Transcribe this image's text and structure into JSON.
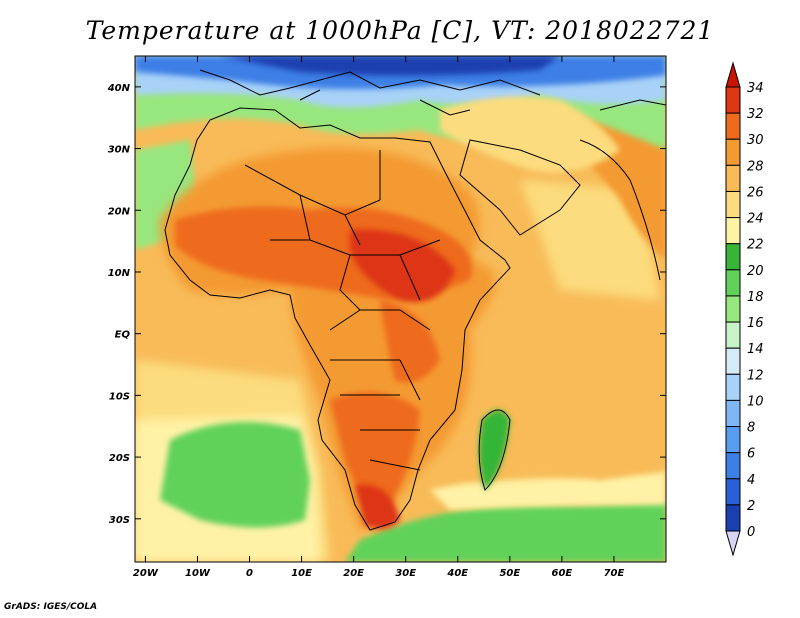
{
  "title": "Temperature at 1000hPa [C], VT: 2018022721",
  "footer": "GrADS: IGES/COLA",
  "map": {
    "region": "Africa and surrounding seas",
    "lon_range": [
      -22,
      80
    ],
    "lat_range": [
      -37,
      45
    ],
    "lon_ticks": [
      {
        "value": -20,
        "label": "20W"
      },
      {
        "value": -10,
        "label": "10W"
      },
      {
        "value": 0,
        "label": "0"
      },
      {
        "value": 10,
        "label": "10E"
      },
      {
        "value": 20,
        "label": "20E"
      },
      {
        "value": 30,
        "label": "30E"
      },
      {
        "value": 40,
        "label": "40E"
      },
      {
        "value": 50,
        "label": "50E"
      },
      {
        "value": 60,
        "label": "60E"
      },
      {
        "value": 70,
        "label": "70E"
      }
    ],
    "lat_ticks": [
      {
        "value": 40,
        "label": "40N"
      },
      {
        "value": 30,
        "label": "30N"
      },
      {
        "value": 20,
        "label": "20N"
      },
      {
        "value": 10,
        "label": "10N"
      },
      {
        "value": 0,
        "label": "EQ"
      },
      {
        "value": -10,
        "label": "10S"
      },
      {
        "value": -20,
        "label": "20S"
      },
      {
        "value": -30,
        "label": "30S"
      }
    ]
  },
  "colorbar": {
    "levels": [
      "0",
      "2",
      "4",
      "6",
      "8",
      "10",
      "12",
      "14",
      "16",
      "18",
      "20",
      "22",
      "24",
      "26",
      "28",
      "30",
      "32",
      "34"
    ],
    "colors": [
      "#0c1c78",
      "#1a3fb0",
      "#2a5fd8",
      "#3d7fe6",
      "#5a9cf0",
      "#7fb7f5",
      "#a8d2f7",
      "#d3ecf7",
      "#c8f2c8",
      "#98e67e",
      "#60d25a",
      "#36b538",
      "#fff2a6",
      "#fcdc7e",
      "#f8bb58",
      "#f49a33",
      "#ee6b1e",
      "#dd3612",
      "#c81400"
    ]
  },
  "chart_data": {
    "type": "heatmap",
    "title": "Temperature at 1000hPa [C], VT: 2018022721",
    "units": "C",
    "valid_time": "2018022721",
    "color_levels": [
      0,
      2,
      4,
      6,
      8,
      10,
      12,
      14,
      16,
      18,
      20,
      22,
      24,
      26,
      28,
      30,
      32,
      34
    ],
    "x_ticks": [
      "20W",
      "10W",
      "0",
      "10E",
      "20E",
      "30E",
      "40E",
      "50E",
      "60E",
      "70E"
    ],
    "y_ticks": [
      "40N",
      "30N",
      "20N",
      "10N",
      "EQ",
      "10S",
      "20S",
      "30S"
    ]
  }
}
